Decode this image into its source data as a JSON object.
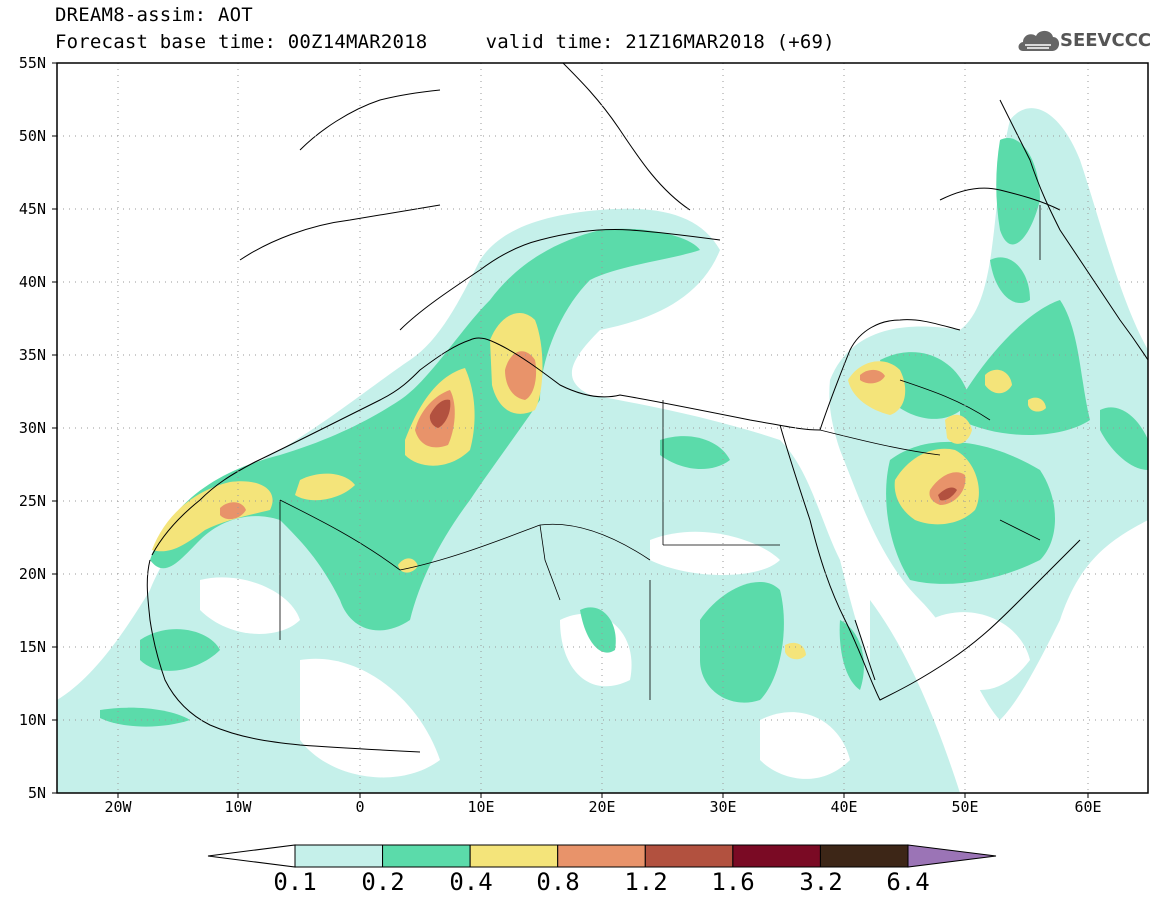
{
  "header": {
    "line1": "DREAM8-assim: AOT",
    "line2": "Forecast base time: 00Z14MAR2018     valid time: 21Z16MAR2018 (+69)"
  },
  "logo": {
    "icon": "cloud-icon",
    "text": "SEEVCCC"
  },
  "map": {
    "lat_labels": [
      "55N",
      "50N",
      "45N",
      "40N",
      "35N",
      "30N",
      "25N",
      "20N",
      "15N",
      "10N",
      "5N"
    ],
    "lon_labels": [
      "20W",
      "10W",
      "0",
      "10E",
      "20E",
      "30E",
      "40E",
      "50E",
      "60E"
    ],
    "lon_range": [
      -25,
      65
    ],
    "lat_range": [
      5,
      55
    ],
    "field": "AOT",
    "grid": "dotted"
  },
  "colorbar": {
    "levels": [
      "0.1",
      "0.2",
      "0.4",
      "0.8",
      "1.2",
      "1.6",
      "3.2",
      "6.4"
    ],
    "colors": [
      "#ffffff",
      "#c5f0ea",
      "#5bdbaa",
      "#f4e47a",
      "#e8936a",
      "#b2513f",
      "#7a0a24",
      "#3d2617",
      "#9b74b6"
    ]
  }
}
